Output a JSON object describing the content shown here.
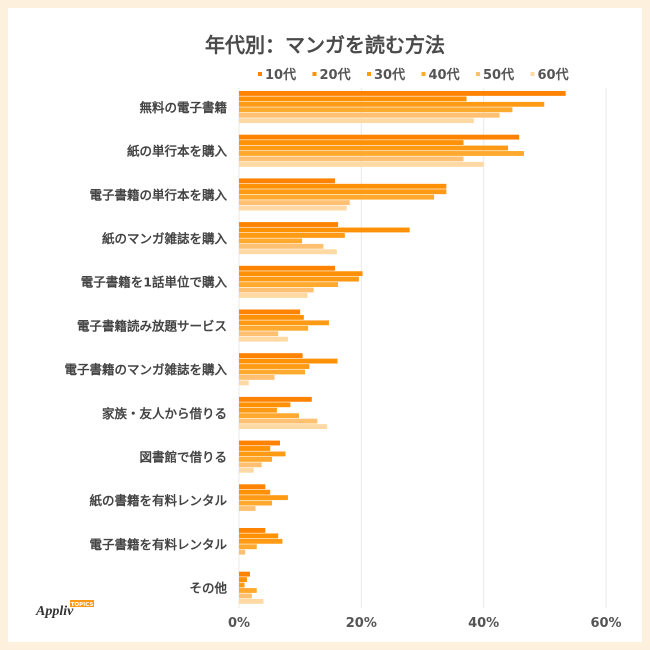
{
  "chart_data": {
    "type": "bar",
    "orientation": "horizontal",
    "title": "年代別：マンガを読む方法",
    "categories": [
      "無料の電子書籍",
      "紙の単行本を購入",
      "電子書籍の単行本を購入",
      "紙のマンガ雑誌を購入",
      "電子書籍を1話単位で購入",
      "電子書籍読み放題サービス",
      "電子書籍のマンガ雑誌を購入",
      "家族・友人から借りる",
      "図書館で借りる",
      "紙の書籍を有料レンタル",
      "電子書籍を有料レンタル",
      "その他"
    ],
    "series": [
      {
        "name": "10代",
        "color": "#ff8200",
        "values": [
          53.4,
          45.8,
          15.7,
          16.2,
          15.7,
          10.0,
          10.4,
          11.9,
          6.7,
          4.3,
          4.3,
          1.8
        ]
      },
      {
        "name": "20代",
        "color": "#ff9106",
        "values": [
          37.2,
          36.7,
          33.9,
          27.9,
          20.2,
          10.6,
          16.1,
          8.4,
          5.1,
          5.1,
          6.4,
          1.3
        ]
      },
      {
        "name": "30代",
        "color": "#ff9a14",
        "values": [
          49.9,
          44.0,
          33.9,
          17.3,
          19.6,
          14.7,
          11.5,
          6.2,
          7.6,
          8.0,
          7.1,
          0.9
        ]
      },
      {
        "name": "40代",
        "color": "#ffa92e",
        "values": [
          44.7,
          46.6,
          31.9,
          10.3,
          16.2,
          11.3,
          10.8,
          9.8,
          5.4,
          5.4,
          2.9,
          2.9
        ]
      },
      {
        "name": "50代",
        "color": "#ffc171",
        "values": [
          42.6,
          36.7,
          18.1,
          13.8,
          12.2,
          6.4,
          5.8,
          12.8,
          3.7,
          2.7,
          1.0,
          2.1
        ]
      },
      {
        "name": "60代",
        "color": "#ffd9a3",
        "values": [
          38.4,
          40.0,
          17.6,
          16.0,
          11.2,
          8.0,
          1.6,
          14.4,
          2.4,
          0,
          0,
          4.0
        ]
      }
    ],
    "xlim": [
      0,
      60
    ],
    "xticks": [
      "0%",
      "20%",
      "40%",
      "60%"
    ],
    "grid": true,
    "legend": "top"
  },
  "logo": {
    "text": "Appliv",
    "badge": "TOPICS"
  }
}
